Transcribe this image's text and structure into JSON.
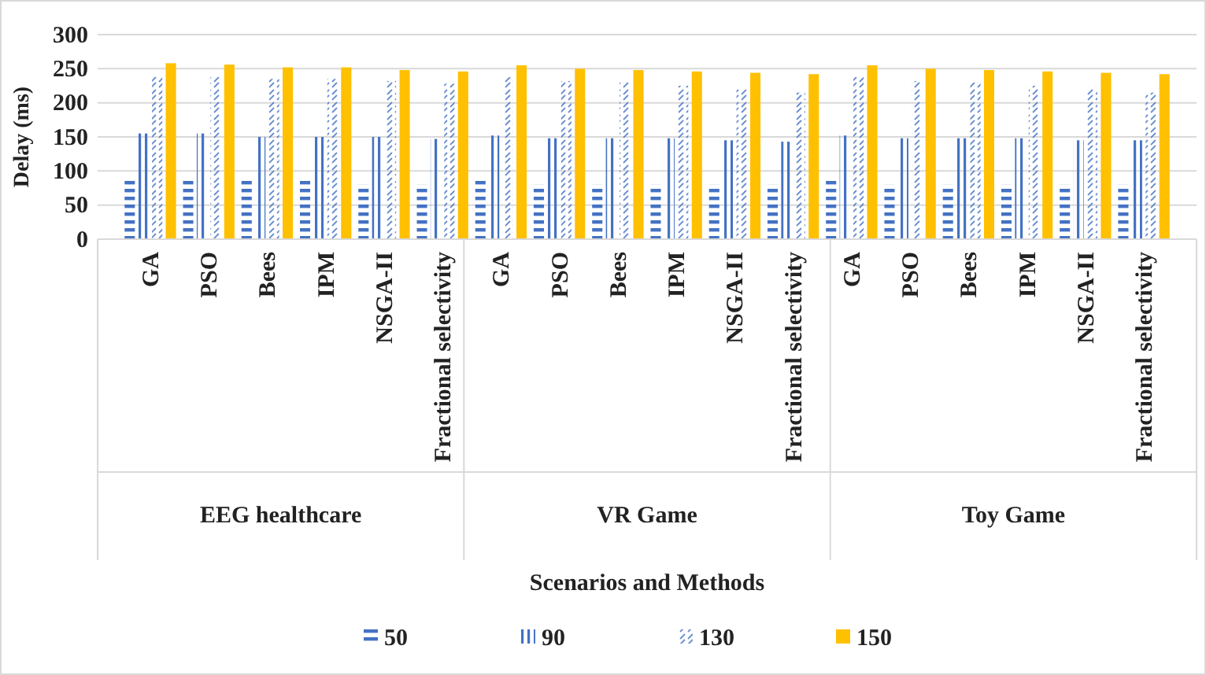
{
  "chart_data": {
    "type": "bar",
    "ylabel": "Delay (ms)",
    "xlabel": "Scenarios and Methods",
    "categories": [
      "GA",
      "PSO",
      "Bees",
      "IPM",
      "NSGA-II",
      "Fractional selectivity",
      "GA",
      "PSO",
      "Bees",
      "IPM",
      "NSGA-II",
      "Fractional selectivity",
      "GA",
      "PSO",
      "Bees",
      "IPM",
      "NSGA-II",
      "Fractional selectivity"
    ],
    "annotations": [
      "EEG healthcare",
      "VR Game",
      "Toy Game"
    ],
    "series": [
      {
        "name": "50",
        "color": "#4472c4",
        "values": [
          90,
          90,
          90,
          90,
          80,
          80,
          90,
          80,
          80,
          80,
          80,
          80,
          90,
          80,
          80,
          80,
          80,
          80
        ]
      },
      {
        "name": "90",
        "color": "#4472c4",
        "values": [
          155,
          155,
          150,
          150,
          150,
          147,
          152,
          148,
          148,
          148,
          145,
          143,
          152,
          148,
          148,
          148,
          145,
          145
        ]
      },
      {
        "name": "130",
        "color": "#4472c4",
        "values": [
          240,
          238,
          235,
          235,
          232,
          228,
          238,
          232,
          230,
          225,
          220,
          215,
          238,
          232,
          230,
          225,
          222,
          215
        ]
      },
      {
        "name": "150",
        "color": "#ffc000",
        "values": [
          258,
          256,
          252,
          252,
          248,
          246,
          255,
          250,
          248,
          246,
          244,
          242,
          255,
          250,
          248,
          246,
          244,
          242
        ]
      }
    ],
    "ylim": [
      0,
      300
    ],
    "yticks": [
      0,
      50,
      100,
      150,
      200,
      250,
      300
    ],
    "grid": "y",
    "legend": "bottom"
  }
}
